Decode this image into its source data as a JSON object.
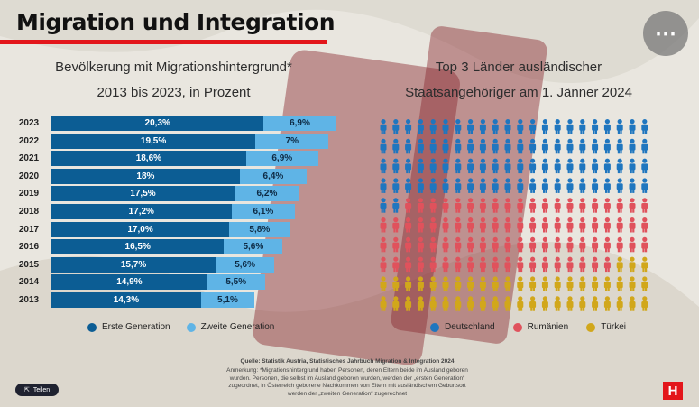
{
  "title": "Migration und Integration",
  "more_icon": "⋯",
  "left_subtitle_1": "Bevölkerung mit Migrationshintergrund*",
  "left_subtitle_2": "2013 bis 2023, in Prozent",
  "right_subtitle_1": "Top 3 Länder ausländischer",
  "right_subtitle_2": "Staatsangehöriger am 1. Jänner 2024",
  "colors": {
    "erste": "#0c5d94",
    "zweite": "#5fb4e6",
    "deutschland": "#1f76bf",
    "rumaenien": "#e0525c",
    "tuerkei": "#d1a71b",
    "accent": "#e3161b"
  },
  "chart_data": [
    {
      "type": "bar",
      "orientation": "horizontal",
      "stacked": true,
      "categories": [
        "2023",
        "2022",
        "2021",
        "2020",
        "2019",
        "2018",
        "2017",
        "2016",
        "2015",
        "2014",
        "2013"
      ],
      "category_labels": [
        "2023",
        "2022",
        "2021",
        "2020",
        "2019",
        "2018",
        "2017",
        "2016",
        "2015",
        "2014",
        "2013"
      ],
      "series": [
        {
          "name": "Erste Generation",
          "values": [
            20.3,
            19.5,
            18.6,
            18,
            17.5,
            17.2,
            17.0,
            16.5,
            15.7,
            14.9,
            14.3
          ],
          "labels": [
            "20,3%",
            "19,5%",
            "18,6%",
            "18%",
            "17,5%",
            "17,2%",
            "17,0%",
            "16,5%",
            "15,7%",
            "14,9%",
            "14,3%"
          ]
        },
        {
          "name": "Zweite Generation",
          "values": [
            6.9,
            7,
            6.9,
            6.4,
            6.2,
            6.1,
            5.8,
            5.6,
            5.6,
            5.5,
            5.1
          ],
          "labels": [
            "6,9%",
            "7%",
            "6,9%",
            "6,4%",
            "6,2%",
            "6,1%",
            "5,8%",
            "5,6%",
            "5,6%",
            "5,5%",
            "5,1%"
          ]
        }
      ],
      "legend_position": "bottom"
    },
    {
      "type": "pictogram",
      "rows": 10,
      "cols": 22,
      "series": [
        {
          "name": "Deutschland",
          "icons": 90
        },
        {
          "name": "Rumänien",
          "icons": 83
        },
        {
          "name": "Türkei",
          "icons": 47
        }
      ],
      "legend_position": "bottom"
    }
  ],
  "legend_left": [
    "Erste Generation",
    "Zweite Generation"
  ],
  "legend_right": [
    "Deutschland",
    "Rumänien",
    "Türkei"
  ],
  "source": "Quelle: Statistik Austria, Statistisches Jahrbuch Migration & Integration 2024",
  "note": "Anmerkung: *Migrationshintergrund haben Personen, deren Eltern beide im Ausland geboren wurden. Personen, die selbst im Ausland geboren wurden, werden der „ersten Generation“ zugeordnet, in Österreich geborene Nachkommen von Eltern mit ausländischem Geburtsort werden der „zweiten Generation“ zugerechnet",
  "share_label": "Teilen",
  "logo_letter": "H"
}
